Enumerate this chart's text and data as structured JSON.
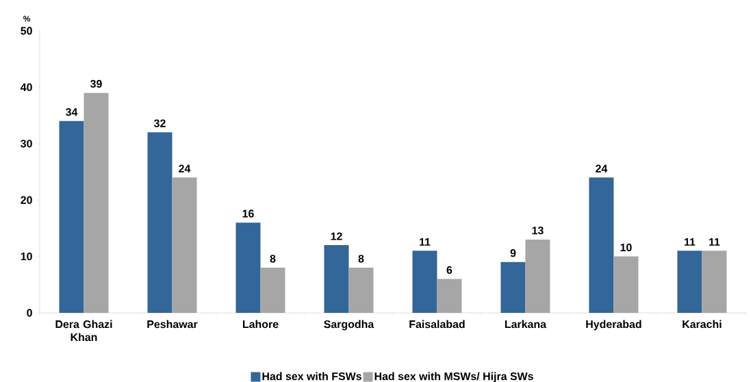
{
  "chart_data": {
    "type": "bar",
    "ylabel": "%",
    "categories": [
      "Dera Ghazi Khan",
      "Peshawar",
      "Lahore",
      "Sargodha",
      "Faisalabad",
      "Larkana",
      "Hyderabad",
      "Karachi"
    ],
    "series": [
      {
        "name": "Had sex with FSWs",
        "color": "#336699",
        "values": [
          34,
          32,
          16,
          12,
          11,
          9,
          24,
          11
        ]
      },
      {
        "name": "Had sex with MSWs/ Hijra SWs",
        "color": "#a6a6a6",
        "values": [
          39,
          24,
          8,
          8,
          6,
          13,
          10,
          11
        ]
      }
    ],
    "ylim": [
      0,
      50
    ],
    "yticks": [
      0,
      10,
      20,
      30,
      40,
      50
    ],
    "data_labels": true,
    "legend": "bottom",
    "grid": false
  }
}
